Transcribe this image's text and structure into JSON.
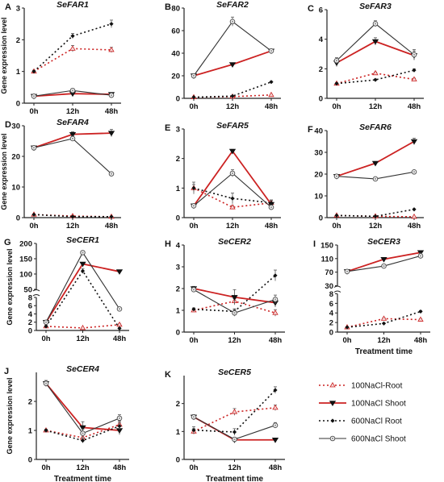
{
  "figure": {
    "legend": {
      "entries": [
        {
          "label": "100NaCl-Root",
          "series": "100NaCl-Root"
        },
        {
          "label": "100NaCl Shoot",
          "series": "100NaCl Shoot"
        },
        {
          "label": "600NaCl Root",
          "series": "600NaCl Root"
        },
        {
          "label": "600NaCl Shoot",
          "series": "600NaCl Shoot"
        }
      ]
    },
    "y_axis_label": "Gene expression level",
    "x_axis_label": "Treatment time"
  },
  "chart_data": [
    {
      "panel": "A",
      "title": "SeFAR1",
      "type": "line",
      "categories": [
        "0h",
        "12h",
        "48h"
      ],
      "ylim": [
        0,
        3
      ],
      "yticks": [
        0,
        1,
        2,
        3
      ],
      "ylabel": "Gene expression level",
      "xlabel": "",
      "series": [
        {
          "name": "100NaCl-Root",
          "color": "#cc2222",
          "values": [
            1.0,
            1.72,
            1.68
          ],
          "errors": [
            0.04,
            0.1,
            0.08
          ]
        },
        {
          "name": "100NaCl Shoot",
          "color": "#cc2222",
          "values": [
            0.22,
            0.3,
            0.28
          ],
          "errors": [
            0.02,
            0.03,
            0.03
          ]
        },
        {
          "name": "600NaCl Root",
          "color": "#111111",
          "values": [
            1.0,
            2.12,
            2.5
          ],
          "errors": [
            0.03,
            0.08,
            0.12
          ]
        },
        {
          "name": "600NaCl Shoot",
          "color": "#333333",
          "values": [
            0.22,
            0.4,
            0.25
          ],
          "errors": [
            0.02,
            0.05,
            0.03
          ]
        }
      ]
    },
    {
      "panel": "B",
      "title": "SeFAR2",
      "type": "line",
      "categories": [
        "0h",
        "12h",
        "48h"
      ],
      "ylim": [
        0,
        80
      ],
      "yticks": [
        0,
        20,
        40,
        60,
        80
      ],
      "ylabel": "",
      "xlabel": "",
      "series": [
        {
          "name": "100NaCl-Root",
          "color": "#cc2222",
          "values": [
            1.0,
            1.5,
            3.0
          ],
          "errors": [
            0.2,
            0.3,
            0.4
          ]
        },
        {
          "name": "100NaCl Shoot",
          "color": "#cc2222",
          "values": [
            20,
            30,
            42
          ],
          "errors": [
            1.0,
            1.0,
            1.5
          ]
        },
        {
          "name": "600NaCl Root",
          "color": "#111111",
          "values": [
            1.0,
            2.0,
            14.5
          ],
          "errors": [
            0.2,
            0.3,
            0.6
          ]
        },
        {
          "name": "600NaCl Shoot",
          "color": "#333333",
          "values": [
            20,
            68,
            42
          ],
          "errors": [
            1.0,
            4.0,
            1.5
          ]
        }
      ]
    },
    {
      "panel": "C",
      "title": "SeFAR3",
      "type": "line",
      "categories": [
        "0h",
        "12h",
        "48h"
      ],
      "ylim": [
        0,
        6
      ],
      "yticks": [
        0,
        2,
        4,
        6
      ],
      "ylabel": "",
      "xlabel": "",
      "series": [
        {
          "name": "100NaCl-Root",
          "color": "#cc2222",
          "values": [
            1.0,
            1.7,
            1.28
          ],
          "errors": [
            0.05,
            0.08,
            0.08
          ]
        },
        {
          "name": "100NaCl Shoot",
          "color": "#cc2222",
          "values": [
            2.4,
            3.85,
            2.9
          ],
          "errors": [
            0.25,
            0.25,
            0.3
          ]
        },
        {
          "name": "600NaCl Root",
          "color": "#111111",
          "values": [
            1.0,
            1.25,
            1.9
          ],
          "errors": [
            0.05,
            0.06,
            0.1
          ]
        },
        {
          "name": "600NaCl Shoot",
          "color": "#333333",
          "values": [
            2.55,
            5.05,
            2.95
          ],
          "errors": [
            0.2,
            0.2,
            0.35
          ]
        }
      ]
    },
    {
      "panel": "D",
      "title": "SeFAR4",
      "type": "line",
      "categories": [
        "0h",
        "12h",
        "48h"
      ],
      "ylim": [
        0,
        30
      ],
      "yticks": [
        0,
        10,
        20,
        30
      ],
      "ylabel": "Gene expression level",
      "xlabel": "",
      "series": [
        {
          "name": "100NaCl-Root",
          "color": "#cc2222",
          "values": [
            1.0,
            0.5,
            0.3
          ],
          "errors": [
            0.1,
            0.1,
            0.1
          ]
        },
        {
          "name": "100NaCl Shoot",
          "color": "#cc2222",
          "values": [
            22.8,
            27.2,
            27.6
          ],
          "errors": [
            0.5,
            0.8,
            1.2
          ]
        },
        {
          "name": "600NaCl Root",
          "color": "#111111",
          "values": [
            1.0,
            0.3,
            0.3
          ],
          "errors": [
            0.1,
            0.1,
            0.1
          ]
        },
        {
          "name": "600NaCl Shoot",
          "color": "#333333",
          "values": [
            22.8,
            25.8,
            14.3
          ],
          "errors": [
            0.5,
            0.8,
            0.5
          ]
        }
      ]
    },
    {
      "panel": "E",
      "title": "SeFAR5",
      "type": "line",
      "categories": [
        "0h",
        "12h",
        "48h"
      ],
      "ylim": [
        0,
        3
      ],
      "yticks": [
        0,
        1,
        2,
        3
      ],
      "ylabel": "",
      "xlabel": "",
      "series": [
        {
          "name": "100NaCl-Root",
          "color": "#cc2222",
          "values": [
            1.0,
            0.35,
            0.5
          ],
          "errors": [
            0.12,
            0.06,
            0.08
          ]
        },
        {
          "name": "100NaCl Shoot",
          "color": "#cc2222",
          "values": [
            0.4,
            2.25,
            0.45
          ],
          "errors": [
            0.04,
            0.06,
            0.05
          ]
        },
        {
          "name": "600NaCl Root",
          "color": "#111111",
          "values": [
            1.0,
            0.65,
            0.5
          ],
          "errors": [
            0.2,
            0.18,
            0.1
          ]
        },
        {
          "name": "600NaCl Shoot",
          "color": "#333333",
          "values": [
            0.4,
            1.5,
            0.35
          ],
          "errors": [
            0.04,
            0.12,
            0.08
          ]
        }
      ]
    },
    {
      "panel": "F",
      "title": "SeFAR6",
      "type": "line",
      "categories": [
        "0h",
        "12h",
        "48h"
      ],
      "ylim": [
        0,
        40
      ],
      "yticks": [
        0,
        10,
        20,
        30,
        40
      ],
      "ylabel": "",
      "xlabel": "",
      "series": [
        {
          "name": "100NaCl-Root",
          "color": "#cc2222",
          "values": [
            1.0,
            0.6,
            0.4
          ],
          "errors": [
            0.1,
            0.1,
            0.1
          ]
        },
        {
          "name": "100NaCl Shoot",
          "color": "#cc2222",
          "values": [
            19,
            25,
            35
          ],
          "errors": [
            0.8,
            0.8,
            1.5
          ]
        },
        {
          "name": "600NaCl Root",
          "color": "#111111",
          "values": [
            1.0,
            0.6,
            3.8
          ],
          "errors": [
            0.1,
            0.1,
            0.2
          ]
        },
        {
          "name": "600NaCl Shoot",
          "color": "#333333",
          "values": [
            19,
            17.8,
            21
          ],
          "errors": [
            0.6,
            0.5,
            0.6
          ]
        }
      ]
    },
    {
      "panel": "G",
      "title": "SeCER1",
      "type": "line",
      "categories": [
        "0h",
        "12h",
        "48h"
      ],
      "broken_axis": true,
      "ylim": [
        0,
        200
      ],
      "ylim_lower": [
        0,
        8
      ],
      "ylim_upper": [
        50,
        200
      ],
      "yticks_lower": [
        0,
        2,
        4,
        6,
        8
      ],
      "yticks_upper": [
        50,
        100,
        150,
        200
      ],
      "ylabel": "Gene expression level",
      "xlabel": "",
      "series": [
        {
          "name": "100NaCl-Root",
          "color": "#cc2222",
          "values": [
            1.0,
            0.6,
            1.4
          ],
          "errors": [
            0.1,
            0.1,
            0.2
          ]
        },
        {
          "name": "100NaCl Shoot",
          "color": "#cc2222",
          "values": [
            2.0,
            133,
            108
          ],
          "errors": [
            0.2,
            5,
            4
          ]
        },
        {
          "name": "600NaCl Root",
          "color": "#111111",
          "values": [
            1.0,
            110,
            0.5
          ],
          "errors": [
            0.1,
            8,
            0.2
          ]
        },
        {
          "name": "600NaCl Shoot",
          "color": "#333333",
          "values": [
            2.0,
            170,
            5.2
          ],
          "errors": [
            0.2,
            6,
            0.3
          ]
        }
      ]
    },
    {
      "panel": "H",
      "title": "SeCER2",
      "type": "line",
      "categories": [
        "0h",
        "12h",
        "48h"
      ],
      "ylim": [
        0,
        4
      ],
      "yticks": [
        0,
        1,
        2,
        3,
        4
      ],
      "ylabel": "",
      "xlabel": "",
      "series": [
        {
          "name": "100NaCl-Root",
          "color": "#cc2222",
          "values": [
            1.0,
            1.42,
            0.88
          ],
          "errors": [
            0.06,
            0.12,
            0.15
          ]
        },
        {
          "name": "100NaCl Shoot",
          "color": "#cc2222",
          "values": [
            2.0,
            1.6,
            1.35
          ],
          "errors": [
            0.1,
            0.35,
            0.2
          ]
        },
        {
          "name": "600NaCl Root",
          "color": "#111111",
          "values": [
            1.05,
            0.95,
            2.6
          ],
          "errors": [
            0.06,
            0.12,
            0.25
          ]
        },
        {
          "name": "600NaCl Shoot",
          "color": "#333333",
          "values": [
            1.95,
            0.88,
            1.5
          ],
          "errors": [
            0.1,
            0.15,
            0.2
          ]
        }
      ]
    },
    {
      "panel": "I",
      "title": "SeCER3",
      "type": "line",
      "categories": [
        "0h",
        "12h",
        "48h"
      ],
      "broken_axis": true,
      "ylim": [
        0,
        150
      ],
      "ylim_lower": [
        0,
        8
      ],
      "ylim_upper": [
        30,
        150
      ],
      "yticks_lower": [
        0,
        2,
        4,
        6,
        8
      ],
      "yticks_upper": [
        30,
        70,
        110,
        150
      ],
      "ylabel": "",
      "xlabel": "Treatment time",
      "series": [
        {
          "name": "100NaCl-Root",
          "color": "#cc2222",
          "values": [
            1.0,
            2.8,
            2.6
          ],
          "errors": [
            0.1,
            0.2,
            0.2
          ]
        },
        {
          "name": "100NaCl Shoot",
          "color": "#cc2222",
          "values": [
            72,
            108,
            128
          ],
          "errors": [
            3,
            4,
            4
          ]
        },
        {
          "name": "600NaCl Root",
          "color": "#111111",
          "values": [
            1.0,
            1.8,
            4.3
          ],
          "errors": [
            0.1,
            0.1,
            0.2
          ]
        },
        {
          "name": "600NaCl Shoot",
          "color": "#333333",
          "values": [
            72,
            88,
            118
          ],
          "errors": [
            3,
            3,
            8
          ]
        }
      ]
    },
    {
      "panel": "J",
      "title": "SeCER4",
      "type": "line",
      "categories": [
        "0h",
        "12h",
        "48h"
      ],
      "ylim": [
        0,
        3
      ],
      "yticks": [
        0,
        1,
        2
      ],
      "ylabel": "Gene expression level",
      "xlabel": "Treatment time",
      "series": [
        {
          "name": "100NaCl-Root",
          "color": "#cc2222",
          "values": [
            1.0,
            0.75,
            1.2
          ],
          "errors": [
            0.04,
            0.1,
            0.12
          ]
        },
        {
          "name": "100NaCl Shoot",
          "color": "#cc2222",
          "values": [
            2.62,
            1.1,
            1.0
          ],
          "errors": [
            0.1,
            0.2,
            0.15
          ]
        },
        {
          "name": "600NaCl Root",
          "color": "#111111",
          "values": [
            1.0,
            0.65,
            1.15
          ],
          "errors": [
            0.04,
            0.08,
            0.12
          ]
        },
        {
          "name": "600NaCl Shoot",
          "color": "#333333",
          "values": [
            2.62,
            0.9,
            1.42
          ],
          "errors": [
            0.1,
            0.15,
            0.12
          ]
        }
      ]
    },
    {
      "panel": "K",
      "title": "SeCER5",
      "type": "line",
      "categories": [
        "0h",
        "12h",
        "48h"
      ],
      "ylim": [
        0,
        3
      ],
      "yticks": [
        0,
        1,
        2
      ],
      "ylabel": "",
      "xlabel": "Treatment time",
      "series": [
        {
          "name": "100NaCl-Root",
          "color": "#cc2222",
          "values": [
            1.0,
            1.7,
            1.85
          ],
          "errors": [
            0.1,
            0.12,
            0.1
          ]
        },
        {
          "name": "100NaCl Shoot",
          "color": "#cc2222",
          "values": [
            1.52,
            0.7,
            0.7
          ],
          "errors": [
            0.08,
            0.04,
            0.06
          ]
        },
        {
          "name": "600NaCl Root",
          "color": "#111111",
          "values": [
            1.05,
            0.98,
            2.48
          ],
          "errors": [
            0.12,
            0.12,
            0.12
          ]
        },
        {
          "name": "600NaCl Shoot",
          "color": "#333333",
          "values": [
            1.52,
            0.72,
            1.22
          ],
          "errors": [
            0.08,
            0.06,
            0.1
          ]
        }
      ]
    }
  ]
}
